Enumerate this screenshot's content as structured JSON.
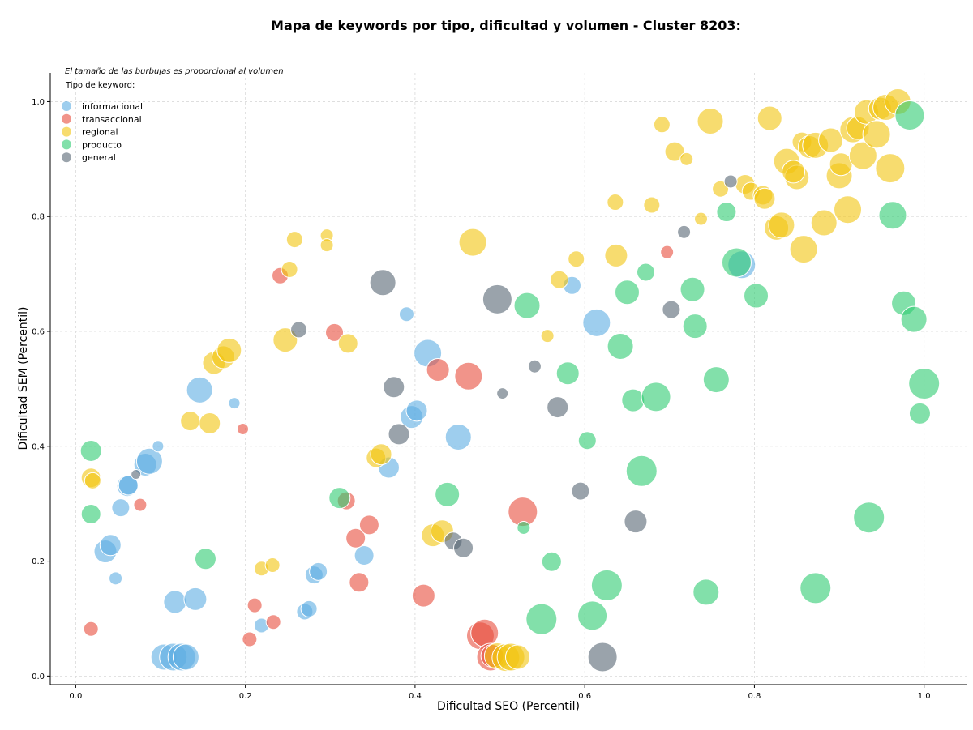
{
  "chart_data": {
    "type": "scatter",
    "title": "Mapa de keywords por tipo, dificultad y volumen - Cluster 8203:",
    "xlabel": "Dificultad SEO (Percentil)",
    "ylabel": "Dificultad SEM (Percentil)",
    "xlim": [
      -0.03,
      1.05
    ],
    "ylim": [
      -0.015,
      1.05
    ],
    "x_ticks": [
      "0.0",
      "0.2",
      "0.4",
      "0.6",
      "0.8",
      "1.0"
    ],
    "y_ticks": [
      "0.0",
      "0.2",
      "0.4",
      "0.6",
      "0.8",
      "1.0"
    ],
    "grid": true,
    "legend_position": "top-left",
    "legend_note": "El tamaño de las burbujas es proporcional al volumen",
    "legend_title": "Tipo de keyword:",
    "colors": {
      "informacional": "#5DADE2",
      "transaccional": "#E74C3C",
      "regional": "#F1C40F",
      "producto": "#2ECC71",
      "general": "#566573"
    },
    "series": [
      {
        "name": "informacional",
        "points": [
          [
            0.035,
            0.217,
            14
          ],
          [
            0.041,
            0.228,
            13
          ],
          [
            0.047,
            0.17,
            8
          ],
          [
            0.053,
            0.293,
            11
          ],
          [
            0.061,
            0.331,
            13
          ],
          [
            0.062,
            0.332,
            12
          ],
          [
            0.082,
            0.368,
            14
          ],
          [
            0.087,
            0.374,
            16
          ],
          [
            0.097,
            0.4,
            7
          ],
          [
            0.104,
            0.033,
            16
          ],
          [
            0.115,
            0.033,
            17
          ],
          [
            0.117,
            0.129,
            14
          ],
          [
            0.125,
            0.033,
            17
          ],
          [
            0.13,
            0.033,
            16
          ],
          [
            0.141,
            0.134,
            14
          ],
          [
            0.146,
            0.498,
            16
          ],
          [
            0.187,
            0.475,
            7
          ],
          [
            0.219,
            0.088,
            9
          ],
          [
            0.27,
            0.112,
            10
          ],
          [
            0.275,
            0.117,
            10
          ],
          [
            0.281,
            0.176,
            11
          ],
          [
            0.286,
            0.182,
            11
          ],
          [
            0.34,
            0.21,
            12
          ],
          [
            0.369,
            0.363,
            13
          ],
          [
            0.39,
            0.63,
            9
          ],
          [
            0.396,
            0.451,
            14
          ],
          [
            0.402,
            0.462,
            13
          ],
          [
            0.415,
            0.562,
            17
          ],
          [
            0.451,
            0.416,
            16
          ],
          [
            0.585,
            0.68,
            11
          ],
          [
            0.614,
            0.615,
            17
          ],
          [
            0.785,
            0.716,
            17
          ]
        ]
      },
      {
        "name": "transaccional",
        "points": [
          [
            0.018,
            0.082,
            9
          ],
          [
            0.076,
            0.298,
            8
          ],
          [
            0.197,
            0.43,
            7
          ],
          [
            0.205,
            0.064,
            9
          ],
          [
            0.211,
            0.123,
            9
          ],
          [
            0.233,
            0.094,
            9
          ],
          [
            0.241,
            0.697,
            10
          ],
          [
            0.305,
            0.598,
            11
          ],
          [
            0.319,
            0.305,
            11
          ],
          [
            0.33,
            0.24,
            12
          ],
          [
            0.334,
            0.163,
            12
          ],
          [
            0.346,
            0.263,
            12
          ],
          [
            0.41,
            0.14,
            14
          ],
          [
            0.427,
            0.533,
            14
          ],
          [
            0.463,
            0.522,
            17
          ],
          [
            0.477,
            0.07,
            17
          ],
          [
            0.482,
            0.075,
            17
          ],
          [
            0.489,
            0.033,
            17
          ],
          [
            0.491,
            0.035,
            14
          ],
          [
            0.527,
            0.286,
            18
          ],
          [
            0.697,
            0.738,
            8
          ]
        ]
      },
      {
        "name": "regional",
        "points": [
          [
            0.018,
            0.345,
            12
          ],
          [
            0.02,
            0.34,
            10
          ],
          [
            0.135,
            0.444,
            12
          ],
          [
            0.158,
            0.44,
            13
          ],
          [
            0.163,
            0.545,
            14
          ],
          [
            0.174,
            0.555,
            14
          ],
          [
            0.181,
            0.567,
            15
          ],
          [
            0.219,
            0.187,
            9
          ],
          [
            0.232,
            0.193,
            9
          ],
          [
            0.247,
            0.585,
            15
          ],
          [
            0.252,
            0.708,
            10
          ],
          [
            0.258,
            0.76,
            10
          ],
          [
            0.296,
            0.767,
            8
          ],
          [
            0.296,
            0.75,
            8
          ],
          [
            0.321,
            0.579,
            12
          ],
          [
            0.354,
            0.38,
            12
          ],
          [
            0.36,
            0.386,
            13
          ],
          [
            0.421,
            0.245,
            14
          ],
          [
            0.432,
            0.252,
            14
          ],
          [
            0.468,
            0.755,
            17
          ],
          [
            0.497,
            0.035,
            16
          ],
          [
            0.507,
            0.032,
            17
          ],
          [
            0.513,
            0.033,
            17
          ],
          [
            0.521,
            0.033,
            15
          ],
          [
            0.556,
            0.592,
            8
          ],
          [
            0.57,
            0.69,
            11
          ],
          [
            0.59,
            0.726,
            10
          ],
          [
            0.636,
            0.825,
            10
          ],
          [
            0.637,
            0.732,
            14
          ],
          [
            0.679,
            0.82,
            10
          ],
          [
            0.691,
            0.96,
            10
          ],
          [
            0.706,
            0.913,
            12
          ],
          [
            0.72,
            0.9,
            8
          ],
          [
            0.737,
            0.796,
            8
          ],
          [
            0.748,
            0.966,
            16
          ],
          [
            0.76,
            0.848,
            10
          ],
          [
            0.789,
            0.856,
            12
          ],
          [
            0.796,
            0.844,
            11
          ],
          [
            0.81,
            0.837,
            12
          ],
          [
            0.812,
            0.831,
            13
          ],
          [
            0.818,
            0.971,
            15
          ],
          [
            0.826,
            0.78,
            15
          ],
          [
            0.832,
            0.785,
            16
          ],
          [
            0.838,
            0.896,
            16
          ],
          [
            0.85,
            0.868,
            15
          ],
          [
            0.846,
            0.878,
            14
          ],
          [
            0.856,
            0.93,
            12
          ],
          [
            0.858,
            0.743,
            17
          ],
          [
            0.865,
            0.921,
            14
          ],
          [
            0.872,
            0.924,
            16
          ],
          [
            0.882,
            0.789,
            16
          ],
          [
            0.89,
            0.933,
            15
          ],
          [
            0.9,
            0.871,
            16
          ],
          [
            0.902,
            0.891,
            14
          ],
          [
            0.91,
            0.812,
            17
          ],
          [
            0.916,
            0.951,
            16
          ],
          [
            0.922,
            0.954,
            14
          ],
          [
            0.928,
            0.906,
            17
          ],
          [
            0.932,
            0.982,
            15
          ],
          [
            0.944,
            0.943,
            17
          ],
          [
            0.948,
            0.988,
            14
          ],
          [
            0.955,
            0.99,
            16
          ],
          [
            0.96,
            0.884,
            18
          ],
          [
            0.969,
            1.0,
            16
          ]
        ]
      },
      {
        "name": "producto",
        "points": [
          [
            0.018,
            0.392,
            13
          ],
          [
            0.018,
            0.282,
            12
          ],
          [
            0.153,
            0.204,
            13
          ],
          [
            0.311,
            0.31,
            13
          ],
          [
            0.438,
            0.316,
            15
          ],
          [
            0.528,
            0.258,
            8
          ],
          [
            0.532,
            0.645,
            16
          ],
          [
            0.549,
            0.099,
            19
          ],
          [
            0.561,
            0.199,
            12
          ],
          [
            0.58,
            0.527,
            14
          ],
          [
            0.603,
            0.41,
            11
          ],
          [
            0.609,
            0.105,
            18
          ],
          [
            0.626,
            0.158,
            19
          ],
          [
            0.642,
            0.574,
            16
          ],
          [
            0.65,
            0.668,
            15
          ],
          [
            0.657,
            0.48,
            14
          ],
          [
            0.667,
            0.357,
            19
          ],
          [
            0.672,
            0.703,
            11
          ],
          [
            0.684,
            0.486,
            18
          ],
          [
            0.73,
            0.609,
            15
          ],
          [
            0.727,
            0.673,
            15
          ],
          [
            0.743,
            0.146,
            16
          ],
          [
            0.755,
            0.516,
            16
          ],
          [
            0.767,
            0.808,
            12
          ],
          [
            0.779,
            0.72,
            18
          ],
          [
            0.802,
            0.662,
            15
          ],
          [
            0.872,
            0.153,
            19
          ],
          [
            0.935,
            0.276,
            19
          ],
          [
            0.963,
            0.802,
            17
          ],
          [
            0.976,
            0.649,
            15
          ],
          [
            0.983,
            0.976,
            18
          ],
          [
            0.988,
            0.621,
            16
          ],
          [
            0.995,
            0.457,
            13
          ],
          [
            1.0,
            0.509,
            19
          ]
        ]
      },
      {
        "name": "general",
        "points": [
          [
            0.071,
            0.351,
            6
          ],
          [
            0.263,
            0.603,
            10
          ],
          [
            0.362,
            0.685,
            16
          ],
          [
            0.375,
            0.503,
            13
          ],
          [
            0.381,
            0.421,
            13
          ],
          [
            0.445,
            0.235,
            11
          ],
          [
            0.457,
            0.223,
            12
          ],
          [
            0.497,
            0.656,
            18
          ],
          [
            0.503,
            0.492,
            7
          ],
          [
            0.541,
            0.539,
            8
          ],
          [
            0.568,
            0.468,
            13
          ],
          [
            0.595,
            0.322,
            11
          ],
          [
            0.621,
            0.033,
            18
          ],
          [
            0.66,
            0.269,
            14
          ],
          [
            0.702,
            0.638,
            11
          ],
          [
            0.717,
            0.773,
            8
          ],
          [
            0.772,
            0.861,
            8
          ]
        ]
      }
    ]
  }
}
